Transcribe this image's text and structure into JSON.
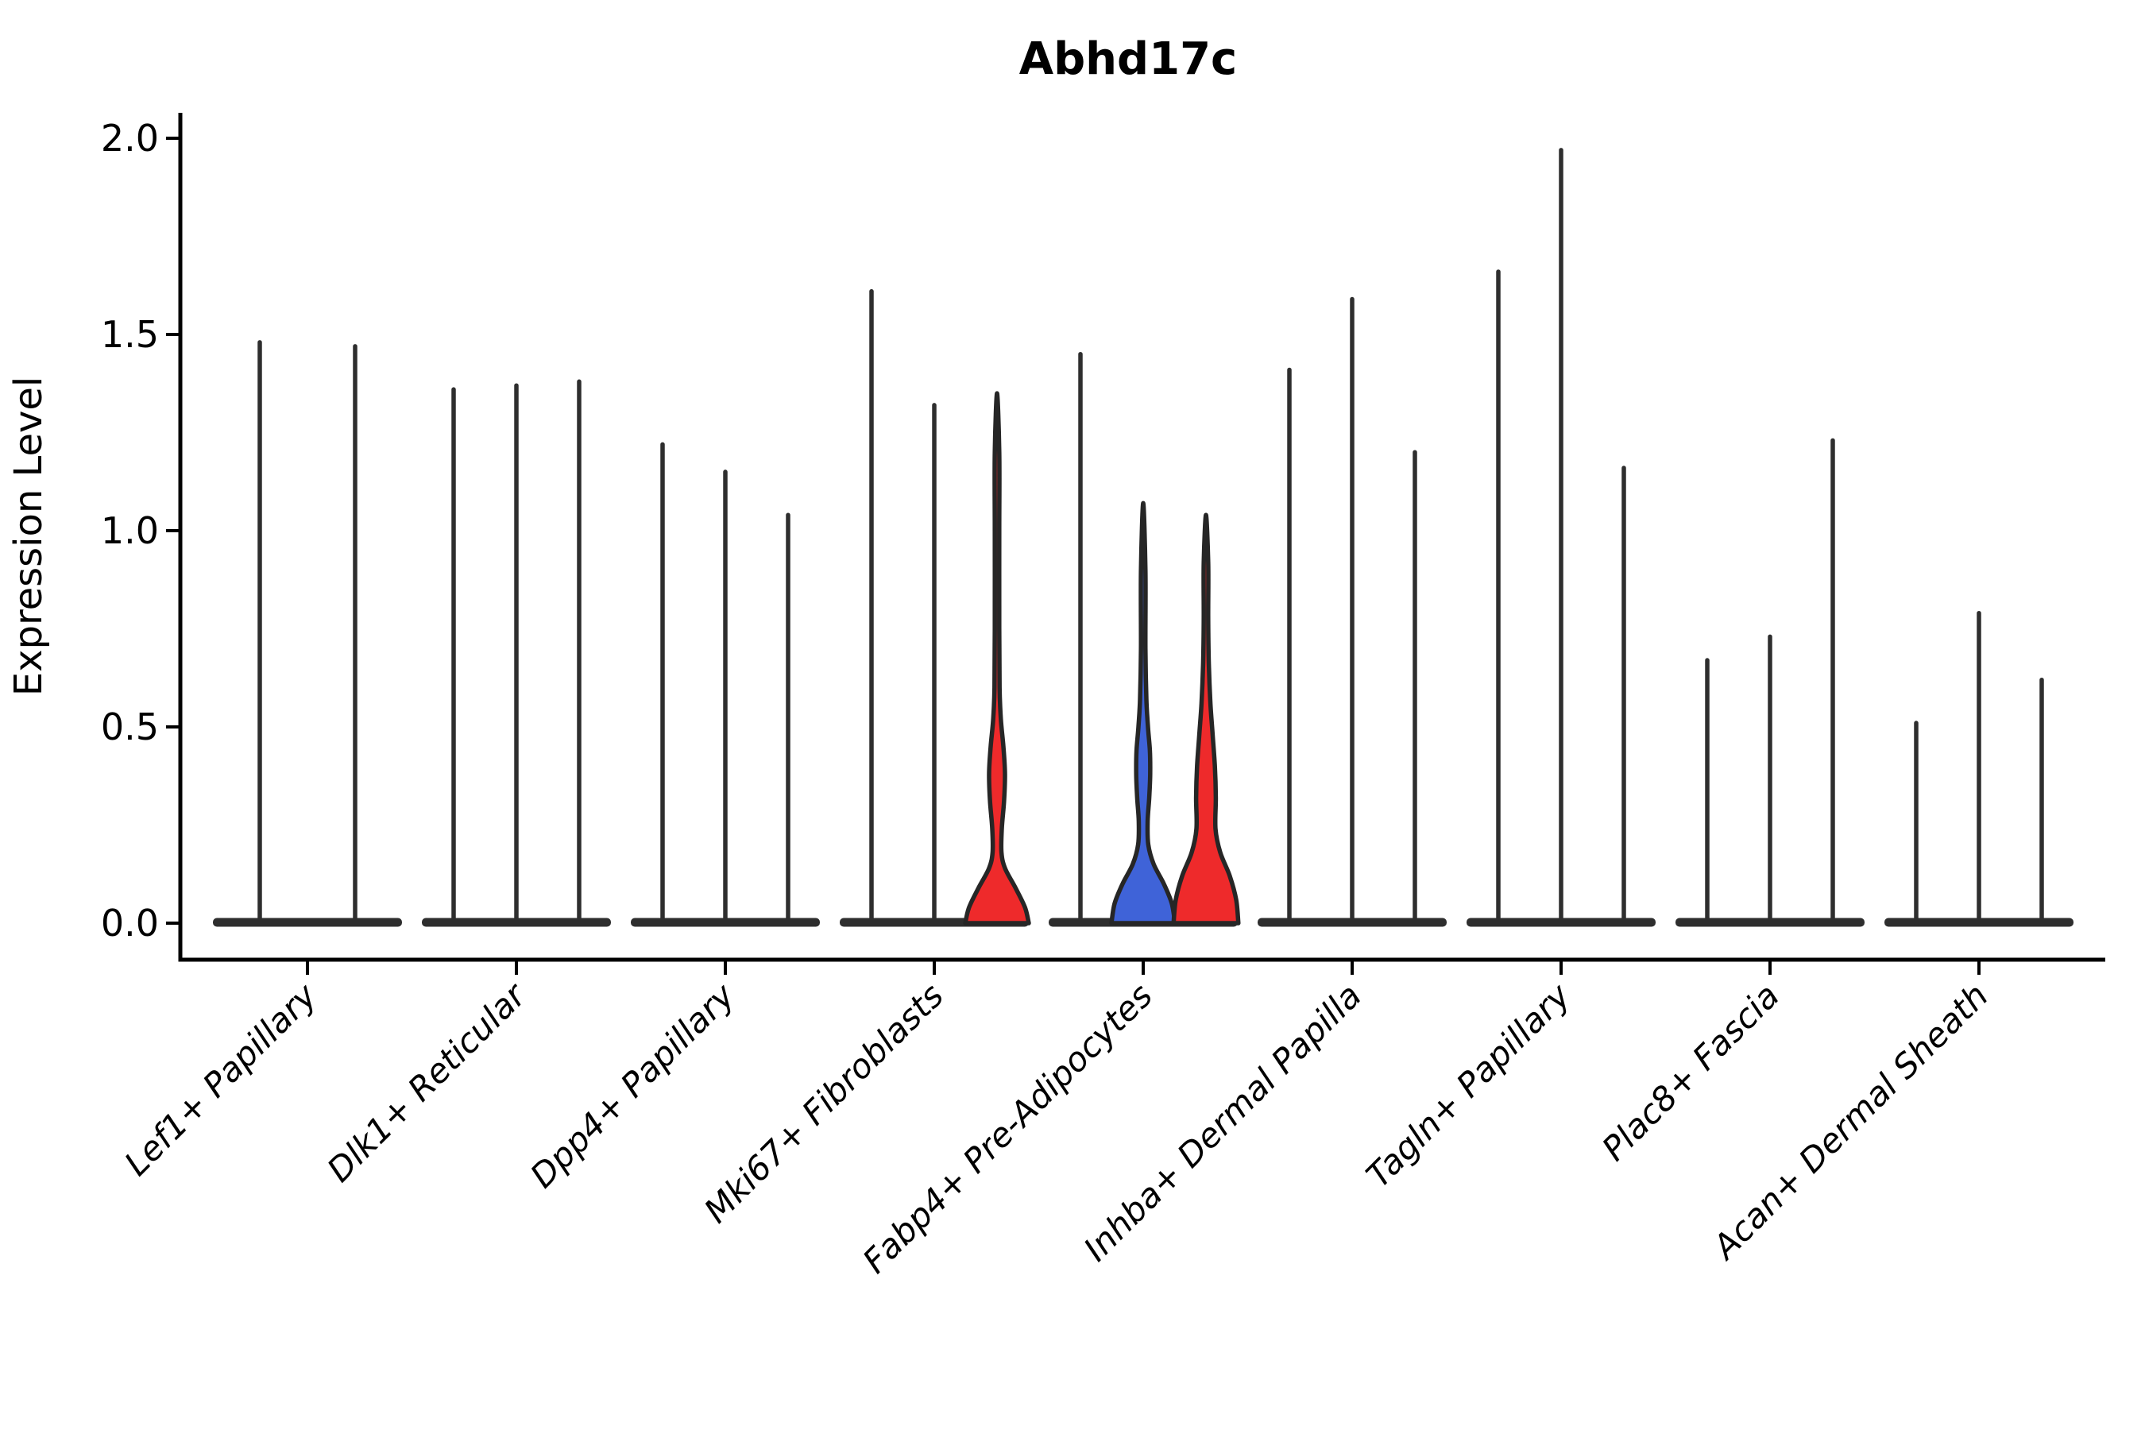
{
  "colors": {
    "red": "#ee2a2b",
    "blue": "#3f63d8",
    "dark": "#2e2e2e",
    "outline": "#262626",
    "axis": "#000000"
  },
  "chart_data": {
    "type": "violin",
    "title": "Abhd17c",
    "xlabel": "",
    "ylabel": "Expression Level",
    "ylim": [
      0,
      2.07
    ],
    "yticks": [
      0.0,
      0.5,
      1.0,
      1.5,
      2.0
    ],
    "grid": false,
    "legend": "none",
    "categories": [
      "Lef1+ Papillary",
      "Dlk1+ Reticular",
      "Dpp4+ Papillary",
      "Mki67+ Fibroblasts",
      "Fabp4+ Pre-Adipocytes",
      "Inhba+ Dermal Papilla",
      "Tagln+ Papillary",
      "Plac8+ Fascia",
      "Acan+ Dermal Sheath"
    ],
    "description": "Violin plot of Abhd17c expression per fibroblast subtype; most cells express near 0 so violins collapse to a wide flat base with a thin spike to the maximum expressing cell. Three violins are highlighted with visible density bulges: Mki67+ Fibroblasts violin 3 (red), Fabp4+ Pre-Adipocytes violin 2 (blue) and violin 3 (red).",
    "groups": [
      {
        "category": "Lef1+ Papillary",
        "violins": [
          {
            "shape": "spike",
            "fill": "dark",
            "peak": 1.48
          },
          {
            "shape": "spike",
            "fill": "dark",
            "peak": 1.47
          }
        ]
      },
      {
        "category": "Dlk1+ Reticular",
        "violins": [
          {
            "shape": "spike",
            "fill": "dark",
            "peak": 1.36
          },
          {
            "shape": "spike",
            "fill": "dark",
            "peak": 1.37
          },
          {
            "shape": "spike",
            "fill": "dark",
            "peak": 1.38
          }
        ]
      },
      {
        "category": "Dpp4+ Papillary",
        "violins": [
          {
            "shape": "spike",
            "fill": "dark",
            "peak": 1.22
          },
          {
            "shape": "spike",
            "fill": "dark",
            "peak": 1.15
          },
          {
            "shape": "spike",
            "fill": "dark",
            "peak": 1.04
          }
        ]
      },
      {
        "category": "Mki67+ Fibroblasts",
        "violins": [
          {
            "shape": "spike",
            "fill": "dark",
            "peak": 1.61
          },
          {
            "shape": "spike",
            "fill": "dark",
            "peak": 1.32
          },
          {
            "shape": "body",
            "fill": "red",
            "peak": 1.35,
            "width_profile": [
              [
                0,
                1.0
              ],
              [
                0.04,
                0.88
              ],
              [
                0.09,
                0.58
              ],
              [
                0.14,
                0.25
              ],
              [
                0.18,
                0.14
              ],
              [
                0.24,
                0.15
              ],
              [
                0.31,
                0.22
              ],
              [
                0.38,
                0.25
              ],
              [
                0.45,
                0.2
              ],
              [
                0.52,
                0.12
              ],
              [
                0.6,
                0.08
              ],
              [
                0.75,
                0.07
              ],
              [
                1.0,
                0.07
              ],
              [
                1.2,
                0.07
              ],
              [
                1.35,
                0.0
              ]
            ]
          }
        ]
      },
      {
        "category": "Fabp4+ Pre-Adipocytes",
        "violins": [
          {
            "shape": "spike",
            "fill": "dark",
            "peak": 1.45
          },
          {
            "shape": "body",
            "fill": "blue",
            "peak": 1.07,
            "width_profile": [
              [
                0,
                1.0
              ],
              [
                0.05,
                0.9
              ],
              [
                0.1,
                0.65
              ],
              [
                0.15,
                0.33
              ],
              [
                0.2,
                0.16
              ],
              [
                0.26,
                0.14
              ],
              [
                0.32,
                0.19
              ],
              [
                0.38,
                0.22
              ],
              [
                0.44,
                0.21
              ],
              [
                0.5,
                0.15
              ],
              [
                0.57,
                0.1
              ],
              [
                0.7,
                0.07
              ],
              [
                0.9,
                0.07
              ],
              [
                1.07,
                0.0
              ]
            ]
          },
          {
            "shape": "body",
            "fill": "red",
            "peak": 1.04,
            "width_profile": [
              [
                0,
                1.02
              ],
              [
                0.06,
                0.95
              ],
              [
                0.12,
                0.75
              ],
              [
                0.18,
                0.45
              ],
              [
                0.24,
                0.3
              ],
              [
                0.32,
                0.31
              ],
              [
                0.4,
                0.28
              ],
              [
                0.48,
                0.21
              ],
              [
                0.56,
                0.14
              ],
              [
                0.66,
                0.09
              ],
              [
                0.78,
                0.07
              ],
              [
                0.92,
                0.07
              ],
              [
                1.04,
                0.0
              ]
            ]
          }
        ]
      },
      {
        "category": "Inhba+ Dermal Papilla",
        "violins": [
          {
            "shape": "spike",
            "fill": "dark",
            "peak": 1.41
          },
          {
            "shape": "spike",
            "fill": "dark",
            "peak": 1.59
          },
          {
            "shape": "spike",
            "fill": "dark",
            "peak": 1.2
          }
        ]
      },
      {
        "category": "Tagln+ Papillary",
        "violins": [
          {
            "shape": "spike",
            "fill": "dark",
            "peak": 1.66
          },
          {
            "shape": "spike",
            "fill": "dark",
            "peak": 1.97
          },
          {
            "shape": "spike",
            "fill": "dark",
            "peak": 1.16
          }
        ]
      },
      {
        "category": "Plac8+ Fascia",
        "violins": [
          {
            "shape": "spike",
            "fill": "dark",
            "peak": 0.67
          },
          {
            "shape": "spike",
            "fill": "dark",
            "peak": 0.73
          },
          {
            "shape": "spike",
            "fill": "dark",
            "peak": 1.23
          }
        ]
      },
      {
        "category": "Acan+ Dermal Sheath",
        "violins": [
          {
            "shape": "spike",
            "fill": "dark",
            "peak": 0.51
          },
          {
            "shape": "spike",
            "fill": "dark",
            "peak": 0.79
          },
          {
            "shape": "spike",
            "fill": "dark",
            "peak": 0.62
          }
        ]
      }
    ]
  }
}
